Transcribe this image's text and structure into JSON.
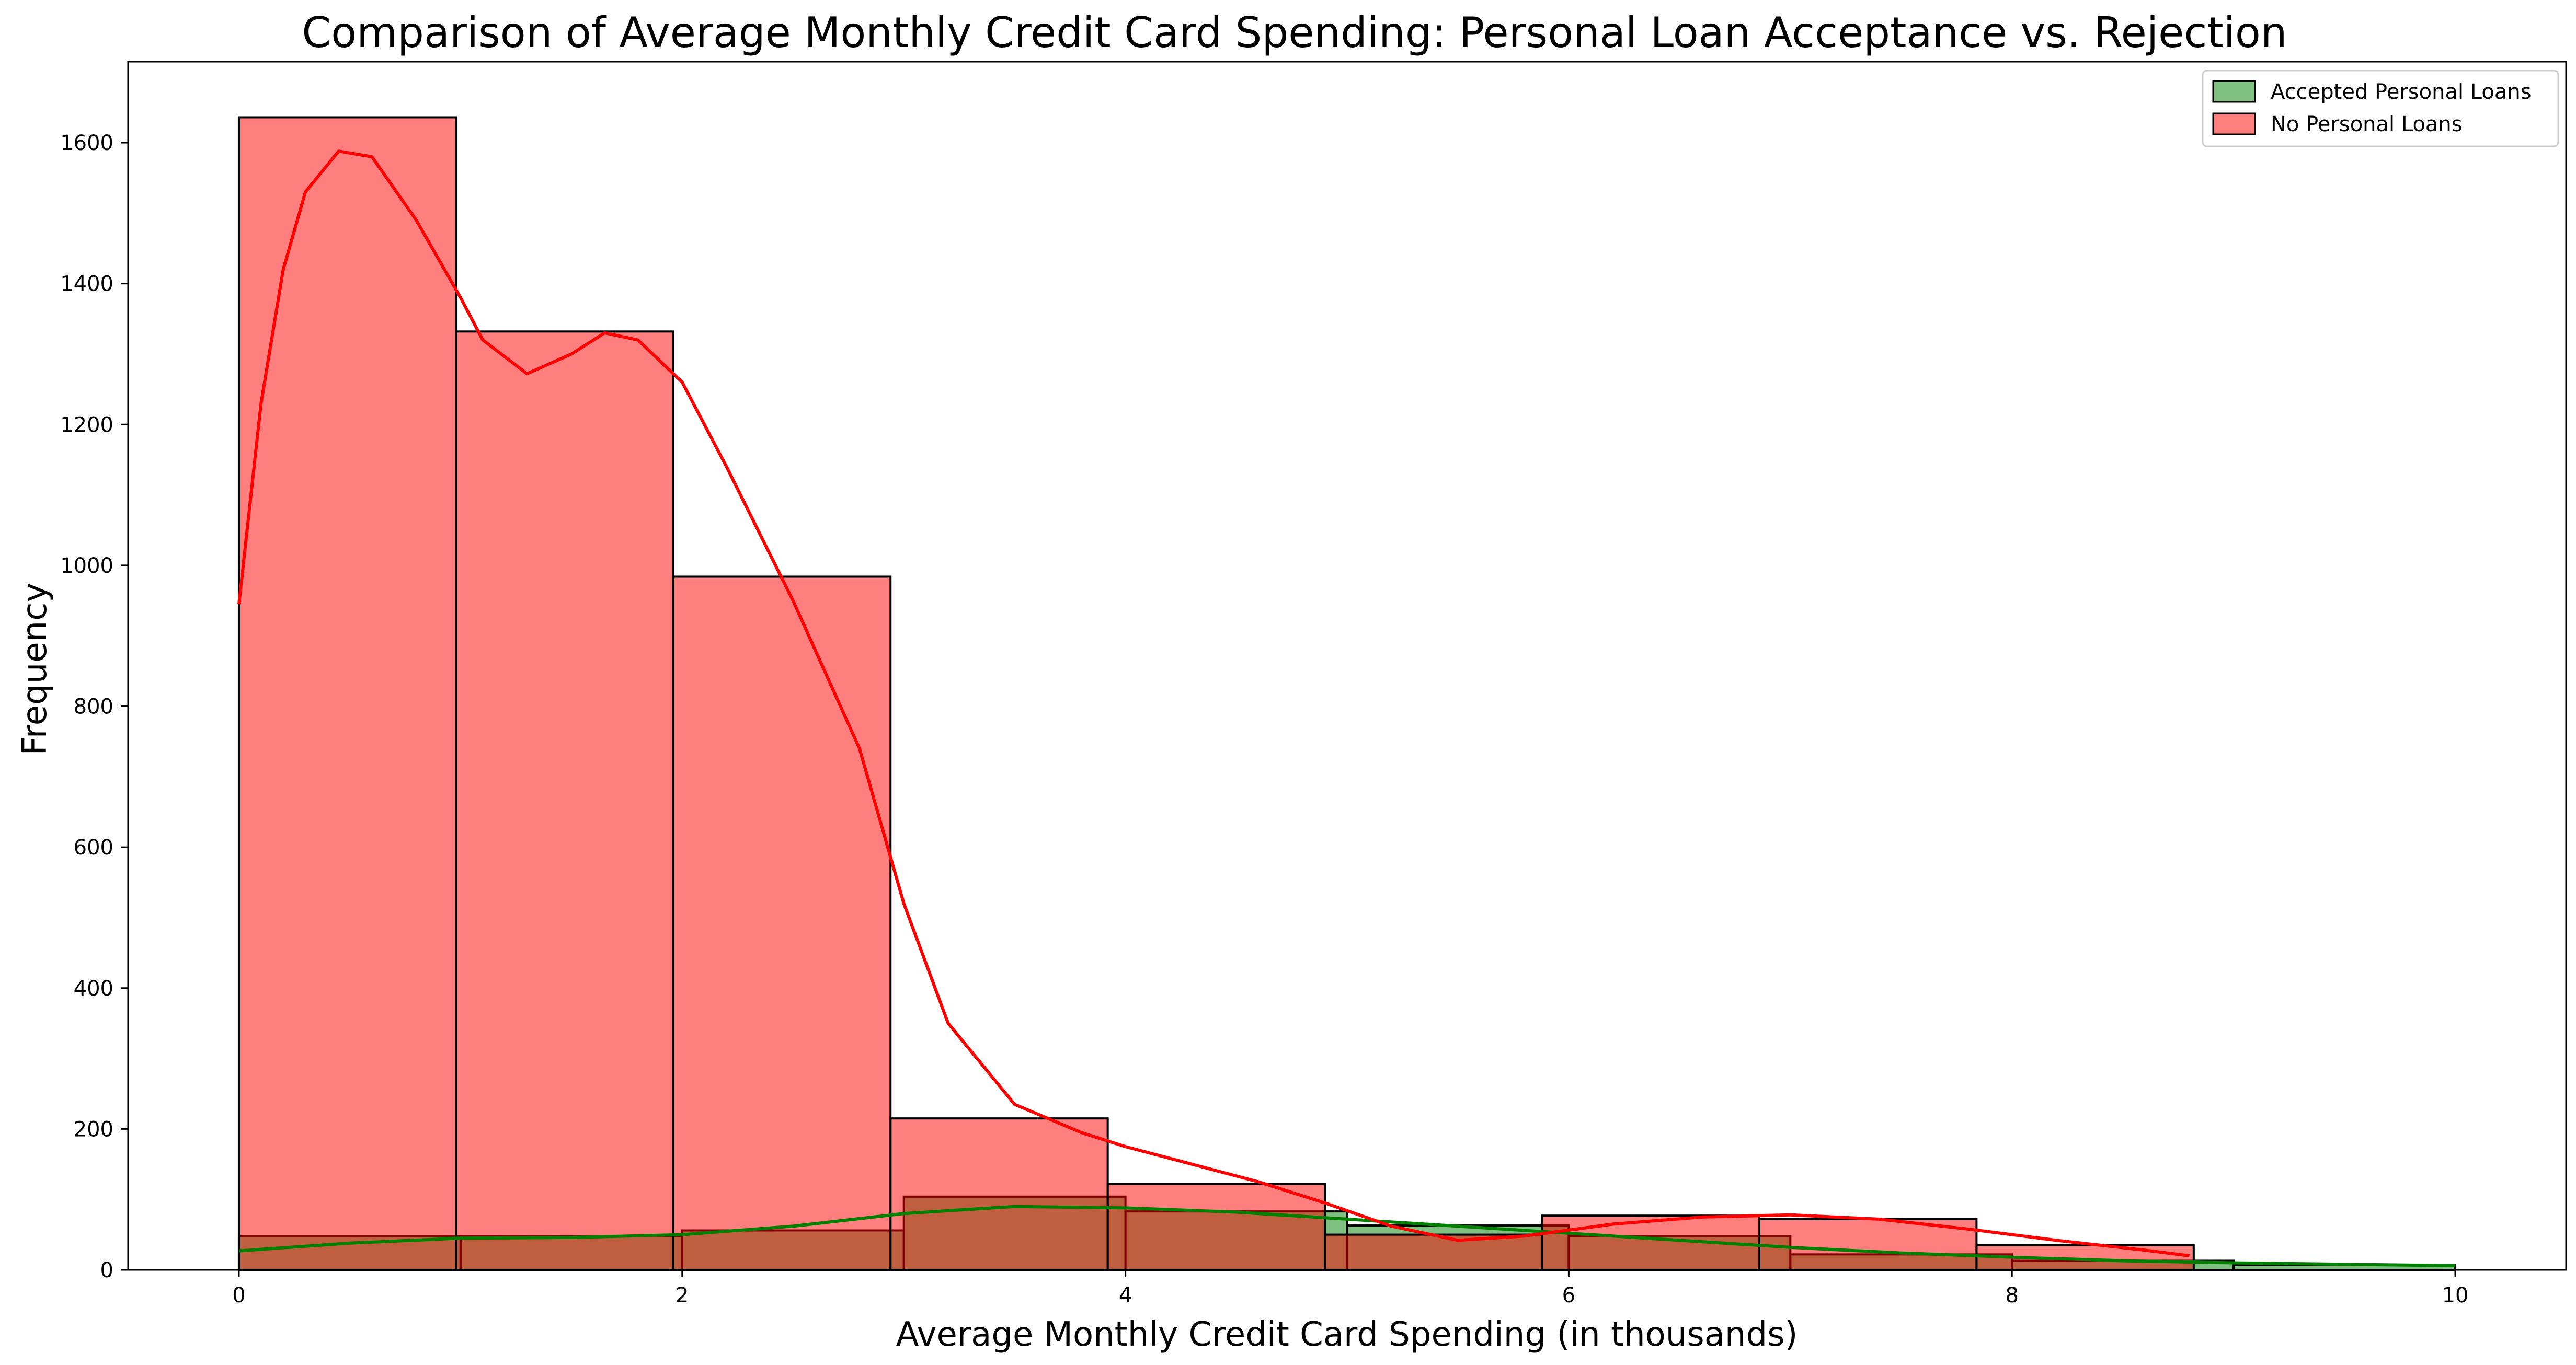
{
  "chart_data": {
    "type": "bar",
    "title": "Comparison of Average Monthly Credit Card Spending: Personal Loan Acceptance vs. Rejection",
    "xlabel": "Average Monthly Credit Card Spending (in thousands)",
    "ylabel": "Frequency",
    "xlim": [
      -0.5,
      10.5
    ],
    "ylim": [
      0,
      1715
    ],
    "xticks": [
      0,
      2,
      4,
      6,
      8,
      10
    ],
    "yticks": [
      0,
      200,
      400,
      600,
      800,
      1000,
      1200,
      1400,
      1600
    ],
    "grid": false,
    "legend_position": "top-right",
    "series": [
      {
        "name": "Accepted Personal Loans",
        "color": "#008000",
        "bin_edges": [
          0,
          1,
          2,
          3,
          4,
          5,
          6,
          7,
          8,
          9,
          10
        ],
        "counts": [
          48,
          48,
          56,
          104,
          83,
          63,
          48,
          22,
          13,
          7
        ],
        "kde": [
          [
            0,
            27
          ],
          [
            0.5,
            38
          ],
          [
            1,
            45
          ],
          [
            1.5,
            46
          ],
          [
            2,
            50
          ],
          [
            2.5,
            62
          ],
          [
            3,
            80
          ],
          [
            3.5,
            90
          ],
          [
            4,
            88
          ],
          [
            4.5,
            82
          ],
          [
            5,
            72
          ],
          [
            5.5,
            62
          ],
          [
            6,
            52
          ],
          [
            6.5,
            42
          ],
          [
            7,
            32
          ],
          [
            7.5,
            24
          ],
          [
            8,
            18
          ],
          [
            8.5,
            13
          ],
          [
            9,
            10
          ],
          [
            9.5,
            8
          ],
          [
            10,
            6
          ]
        ]
      },
      {
        "name": "No Personal Loans",
        "color": "#ff0000",
        "bin_edges": [
          0,
          0.98,
          1.96,
          2.94,
          3.92,
          4.9,
          5.88,
          6.86,
          7.84,
          8.82
        ],
        "counts": [
          1636,
          1332,
          984,
          215,
          122,
          50,
          77,
          72,
          35
        ],
        "kde": [
          [
            0,
            945
          ],
          [
            0.1,
            1230
          ],
          [
            0.2,
            1420
          ],
          [
            0.3,
            1530
          ],
          [
            0.45,
            1588
          ],
          [
            0.6,
            1580
          ],
          [
            0.8,
            1490
          ],
          [
            1,
            1380
          ],
          [
            1.1,
            1320
          ],
          [
            1.3,
            1272
          ],
          [
            1.5,
            1300
          ],
          [
            1.65,
            1330
          ],
          [
            1.8,
            1320
          ],
          [
            2,
            1260
          ],
          [
            2.2,
            1140
          ],
          [
            2.5,
            950
          ],
          [
            2.8,
            740
          ],
          [
            3,
            520
          ],
          [
            3.2,
            350
          ],
          [
            3.5,
            235
          ],
          [
            3.8,
            195
          ],
          [
            4,
            175
          ],
          [
            4.3,
            150
          ],
          [
            4.6,
            125
          ],
          [
            4.9,
            95
          ],
          [
            5.2,
            62
          ],
          [
            5.5,
            42
          ],
          [
            5.8,
            48
          ],
          [
            6.2,
            65
          ],
          [
            6.6,
            75
          ],
          [
            7,
            78
          ],
          [
            7.4,
            72
          ],
          [
            7.8,
            58
          ],
          [
            8.2,
            42
          ],
          [
            8.6,
            28
          ],
          [
            8.8,
            20
          ]
        ]
      }
    ]
  }
}
